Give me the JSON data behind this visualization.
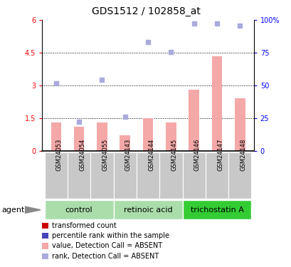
{
  "title": "GDS1512 / 102858_at",
  "samples": [
    "GSM24053",
    "GSM24054",
    "GSM24055",
    "GSM24143",
    "GSM24144",
    "GSM24145",
    "GSM24146",
    "GSM24147",
    "GSM24148"
  ],
  "bar_values": [
    1.3,
    1.1,
    1.3,
    0.7,
    1.5,
    1.3,
    2.8,
    4.35,
    2.4
  ],
  "dot_values": [
    3.1,
    1.35,
    3.25,
    1.55,
    5.0,
    4.55,
    5.85,
    5.85,
    5.75
  ],
  "bar_color": "#F4A8A8",
  "dot_color": "#AAAADD",
  "ylim_left": [
    0,
    6
  ],
  "ylim_right": [
    0,
    100
  ],
  "yticks_left": [
    0,
    1.5,
    3.0,
    4.5,
    6.0
  ],
  "ytick_labels_left": [
    "0",
    "1.5",
    "3",
    "4.5",
    "6"
  ],
  "yticks_right_pct": [
    0,
    25,
    50,
    75,
    100
  ],
  "ytick_labels_right": [
    "0",
    "25",
    "50",
    "75",
    "100%"
  ],
  "hlines": [
    1.5,
    3.0,
    4.5
  ],
  "group_configs": [
    {
      "start": 0,
      "end": 2,
      "color": "#AADDAA",
      "label": "control"
    },
    {
      "start": 3,
      "end": 5,
      "color": "#AADDAA",
      "label": "retinoic acid"
    },
    {
      "start": 6,
      "end": 8,
      "color": "#33CC33",
      "label": "trichostatin A"
    }
  ],
  "legend_items": [
    {
      "label": "transformed count",
      "color": "#CC0000"
    },
    {
      "label": "percentile rank within the sample",
      "color": "#4444BB"
    },
    {
      "label": "value, Detection Call = ABSENT",
      "color": "#F4A8A8"
    },
    {
      "label": "rank, Detection Call = ABSENT",
      "color": "#AAAADD"
    }
  ],
  "agent_label": "agent",
  "bar_width": 0.45,
  "dot_size": 18,
  "title_fontsize": 10,
  "tick_fontsize": 7,
  "sample_fontsize": 6,
  "legend_fontsize": 7,
  "group_fontsize": 8
}
